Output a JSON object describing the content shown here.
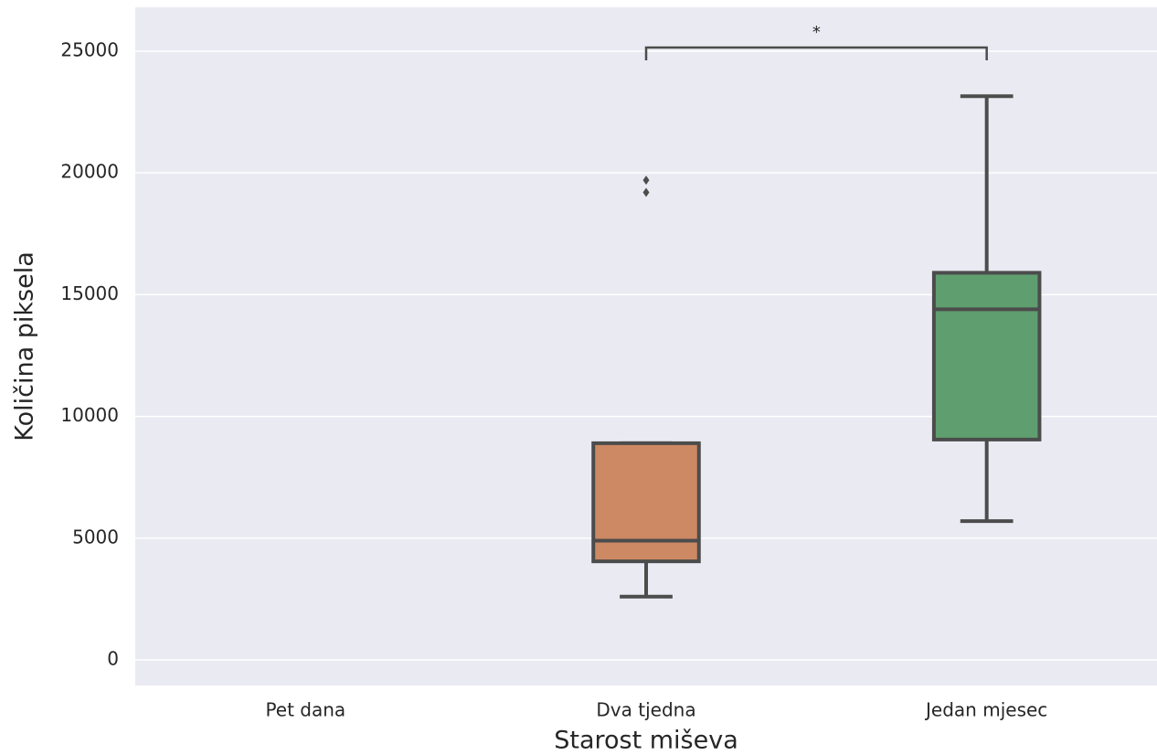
{
  "chart_data": {
    "type": "box",
    "x_label": "Starost miševa",
    "y_label": "Količina piksela",
    "categories": [
      "Pet dana",
      "Dva tjedna",
      "Jedan mjesec"
    ],
    "values": [
      null,
      {
        "whisker_low": 2600,
        "q1": 4050,
        "median": 4900,
        "q3": 8900,
        "whisker_high": 8900,
        "outliers": [
          19700,
          19200
        ]
      },
      {
        "whisker_low": 5700,
        "q1": 9050,
        "median": 14400,
        "q3": 15900,
        "whisker_high": 23150,
        "outliers": []
      }
    ],
    "colors": [
      null,
      "#cc8963",
      "#5f9e6e"
    ],
    "line_color": "#4c4c4c",
    "ylim": [
      -1050,
      26800
    ],
    "yticks": [
      0,
      5000,
      10000,
      15000,
      20000,
      25000
    ],
    "grid": true,
    "annotation": {
      "text": "*",
      "between": [
        "Dva tjedna",
        "Jedan mjesec"
      ]
    }
  }
}
